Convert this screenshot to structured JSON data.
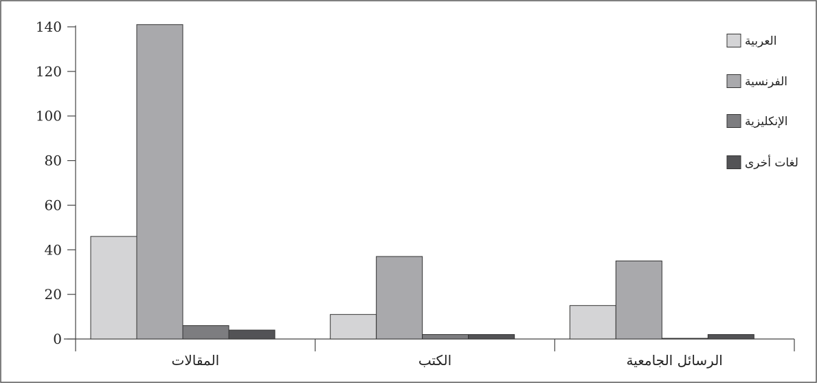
{
  "chart_data": {
    "type": "bar",
    "categories": [
      "المقالات",
      "الكتب",
      "الرسائل الجامعية"
    ],
    "series": [
      {
        "name": "العربية",
        "values": [
          46,
          11,
          15
        ],
        "color": "#d4d4d6"
      },
      {
        "name": "الفرنسية",
        "values": [
          141,
          37,
          35
        ],
        "color": "#a9a9ac"
      },
      {
        "name": "الإنكليزية",
        "values": [
          6,
          2,
          0.3
        ],
        "color": "#7d7d80"
      },
      {
        "name": "لغات أخرى",
        "values": [
          4,
          2,
          2
        ],
        "color": "#535356"
      }
    ],
    "ylim": [
      0,
      140
    ],
    "yticks": [
      0,
      20,
      40,
      60,
      80,
      100,
      120,
      140
    ],
    "ytick_labels": [
      "0",
      "20",
      "40",
      "60",
      "80",
      "100",
      "120",
      "140"
    ],
    "legend_position": "top-right",
    "grid": false
  }
}
